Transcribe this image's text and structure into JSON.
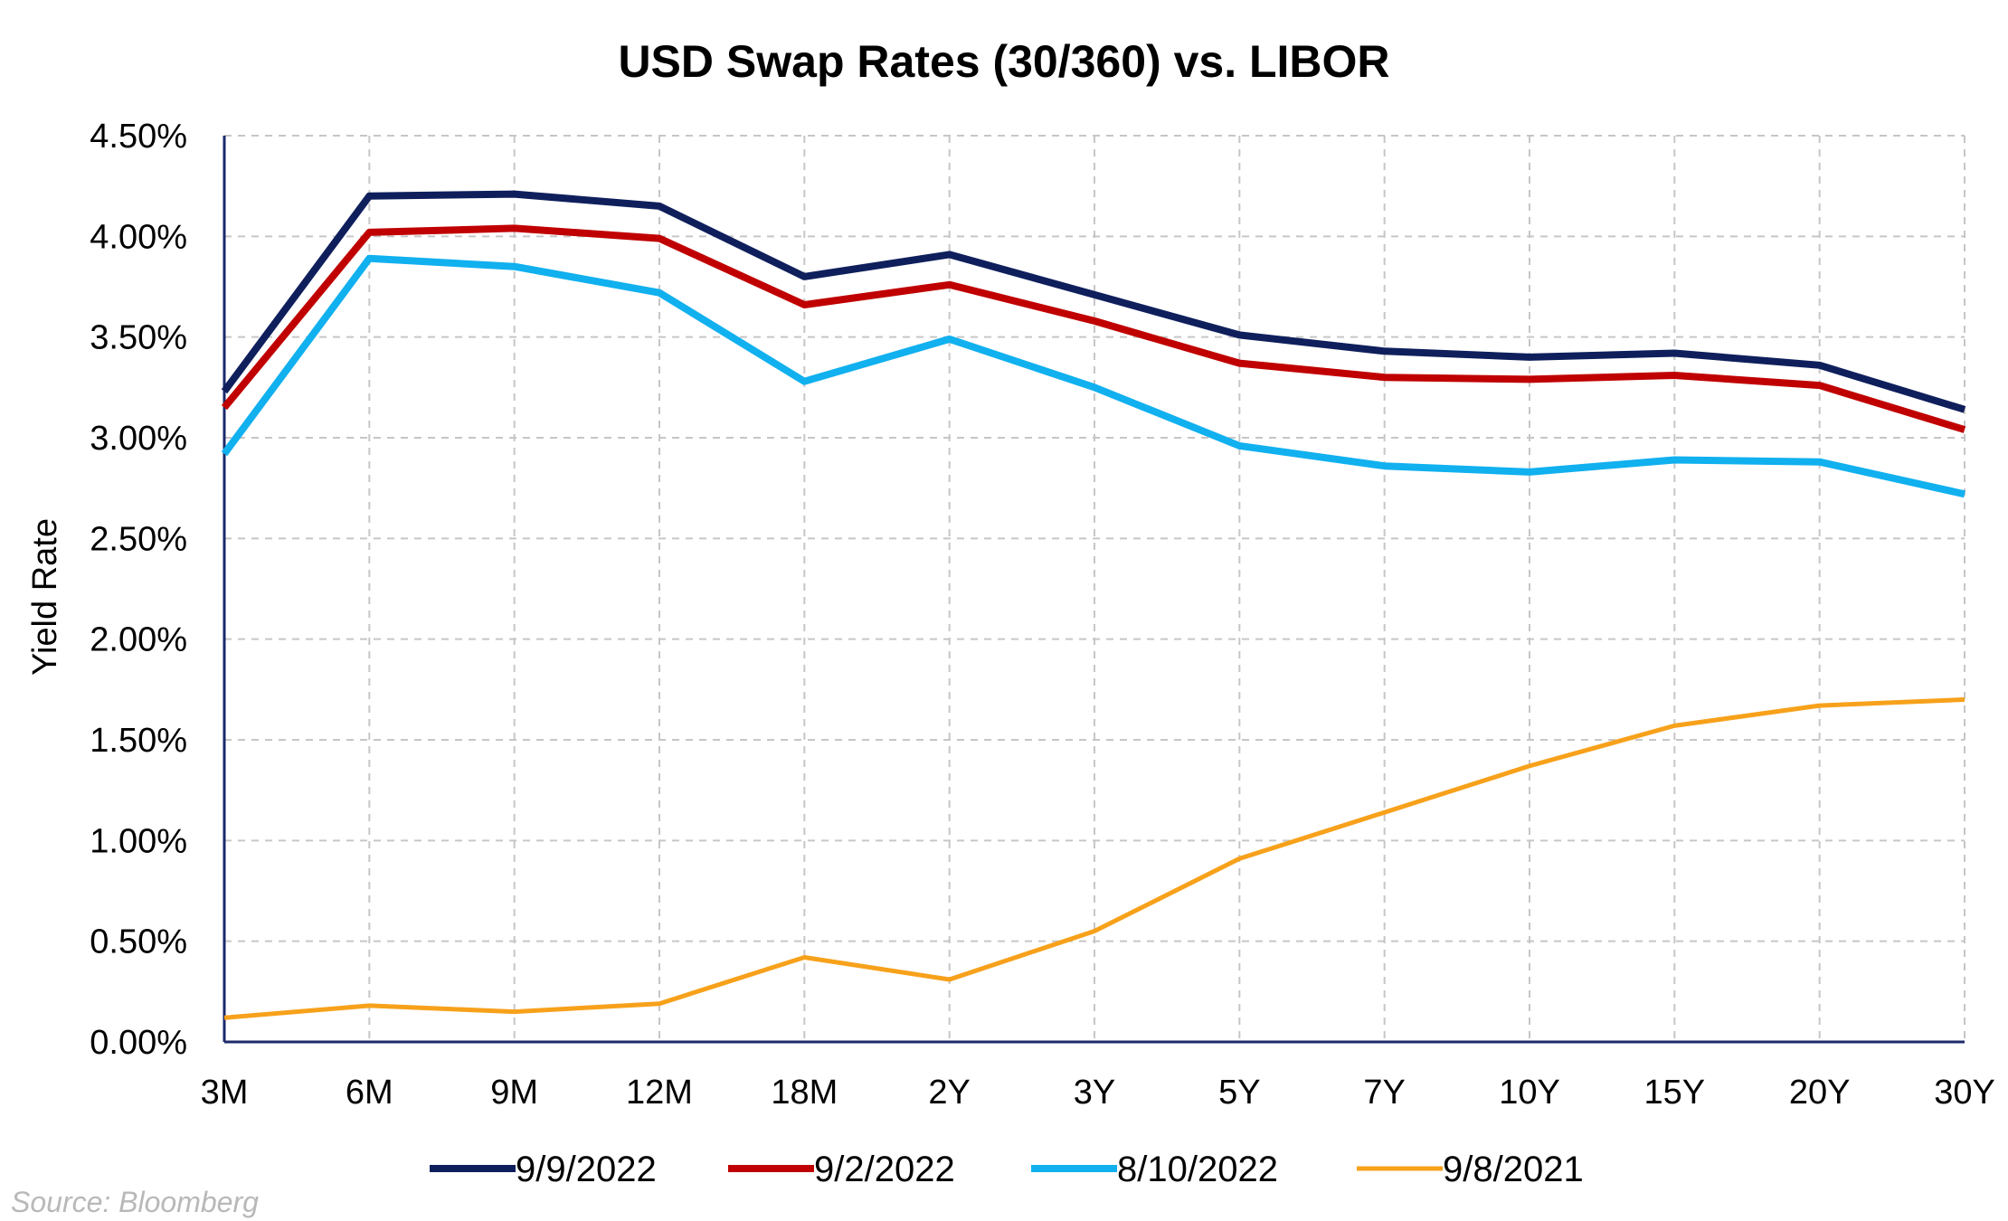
{
  "chart_data": {
    "type": "line",
    "title": "USD Swap Rates (30/360) vs. LIBOR",
    "xlabel": "",
    "ylabel": "Yield Rate",
    "categories": [
      "3M",
      "6M",
      "9M",
      "12M",
      "18M",
      "2Y",
      "3Y",
      "5Y",
      "7Y",
      "10Y",
      "15Y",
      "20Y",
      "30Y"
    ],
    "ylim": [
      0,
      4.5
    ],
    "yticks": [
      "0.00%",
      "0.50%",
      "1.00%",
      "1.50%",
      "2.00%",
      "2.50%",
      "3.00%",
      "3.50%",
      "4.00%",
      "4.50%"
    ],
    "ytick_values": [
      0,
      0.5,
      1.0,
      1.5,
      2.0,
      2.5,
      3.0,
      3.5,
      4.0,
      4.5
    ],
    "grid": true,
    "legend_position": "bottom",
    "series": [
      {
        "name": "9/9/2022",
        "color": "#0f1f5c",
        "width": 8,
        "values": [
          3.23,
          4.2,
          4.21,
          4.15,
          3.8,
          3.91,
          3.71,
          3.51,
          3.43,
          3.4,
          3.42,
          3.36,
          3.14
        ]
      },
      {
        "name": "9/2/2022",
        "color": "#c00000",
        "width": 8,
        "values": [
          3.15,
          4.02,
          4.04,
          3.99,
          3.66,
          3.76,
          3.58,
          3.37,
          3.3,
          3.29,
          3.31,
          3.26,
          3.04
        ]
      },
      {
        "name": "8/10/2022",
        "color": "#11b0ef",
        "width": 8,
        "values": [
          2.92,
          3.89,
          3.85,
          3.72,
          3.28,
          3.49,
          3.25,
          2.96,
          2.86,
          2.83,
          2.89,
          2.88,
          2.72
        ]
      },
      {
        "name": "9/8/2021",
        "color": "#f7a11b",
        "width": 5,
        "values": [
          0.12,
          0.18,
          0.15,
          0.19,
          0.42,
          0.31,
          0.55,
          0.91,
          1.14,
          1.37,
          1.57,
          1.67,
          1.7
        ]
      }
    ]
  },
  "source_note": "Source: Bloomberg"
}
